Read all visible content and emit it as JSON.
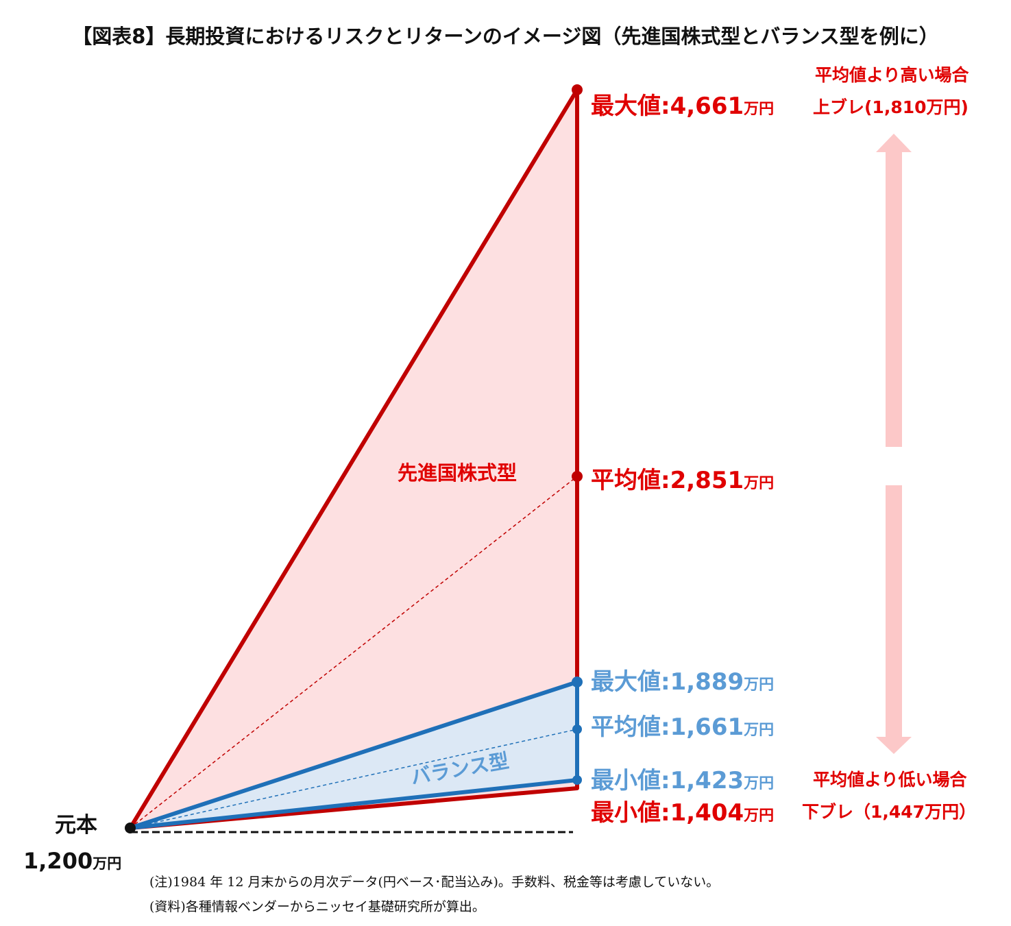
{
  "title": "【図表8】長期投資におけるリスクとリターンのイメージ図（先進国株式型とバランス型を例に）",
  "colors": {
    "stock_line": "#c00000",
    "stock_fill": "#fde0e1",
    "balance_line": "#1f70b8",
    "balance_fill": "#dce8f5",
    "stock_text": "#e00000",
    "balance_text": "#5b9bd5",
    "arrow": "#fcc8c8"
  },
  "chart_data": {
    "type": "area",
    "title": "【図表8】長期投資におけるリスクとリターンのイメージ図（先進国株式型とバランス型を例に）",
    "unit": "万円",
    "start": {
      "label": "元本",
      "value": 1200,
      "value_text": "1,200",
      "unit": "万円"
    },
    "series": [
      {
        "name": "先進国株式型",
        "max": 4661,
        "avg": 2851,
        "min": 1404,
        "max_label": "最大値:",
        "max_text": "4,661",
        "avg_label": "平均値:",
        "avg_text": "2,851",
        "min_label": "最小値:",
        "min_text": "1,404"
      },
      {
        "name": "バランス型",
        "max": 1889,
        "avg": 1661,
        "min": 1423,
        "max_label": "最大値:",
        "max_text": "1,889",
        "avg_label": "平均値:",
        "avg_text": "1,661",
        "min_label": "最小値:",
        "min_text": "1,423"
      }
    ],
    "upside": {
      "label": "平均値より高い場合",
      "detail": "上ブレ(1,810万円)",
      "value": 1810
    },
    "downside": {
      "label": "平均値より低い場合",
      "detail": "下ブレ（1,447万円）",
      "value": 1447
    }
  },
  "notes": {
    "note": "(注)1984 年 12 月末からの月次データ(円ベース･配当込み)。手数料、税金等は考慮していない。",
    "source": "(資料)各種情報ベンダーからニッセイ基礎研究所が算出。"
  }
}
